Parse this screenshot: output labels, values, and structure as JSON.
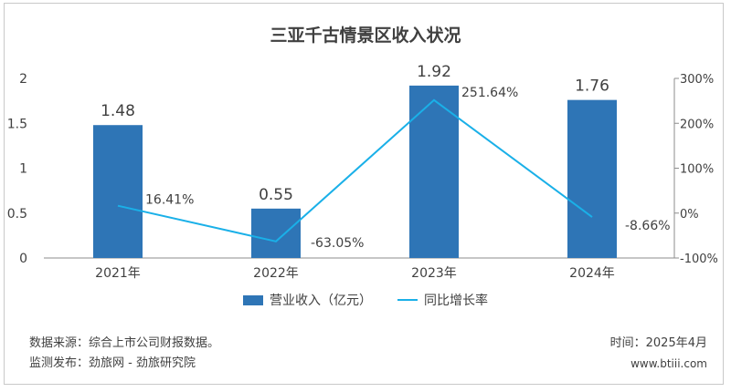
{
  "chart_data": {
    "type": "bar+line",
    "title": "三亚千古情景区收入状况",
    "categories": [
      "2021年",
      "2022年",
      "2023年",
      "2024年"
    ],
    "series": [
      {
        "name": "营业收入（亿元）",
        "kind": "bar",
        "axis": "left",
        "color": "#2e75b6",
        "values": [
          1.48,
          0.55,
          1.92,
          1.76
        ],
        "labels": [
          "1.48",
          "0.55",
          "1.92",
          "1.76"
        ]
      },
      {
        "name": "同比增长率",
        "kind": "line",
        "axis": "right",
        "color": "#1ab0e8",
        "values": [
          16.41,
          -63.05,
          251.64,
          -8.66
        ],
        "labels": [
          "16.41%",
          "-63.05%",
          "251.64%",
          "-8.66%"
        ]
      }
    ],
    "left_axis": {
      "min": 0,
      "max": 2,
      "ticks": [
        0,
        0.5,
        1,
        1.5,
        2
      ],
      "tick_labels": [
        "0",
        "0.5",
        "1",
        "1.5",
        "2"
      ]
    },
    "right_axis": {
      "min": -100,
      "max": 300,
      "ticks": [
        -100,
        0,
        100,
        200,
        300
      ],
      "tick_labels": [
        "-100%",
        "0%",
        "100%",
        "200%",
        "300%"
      ]
    },
    "grid": false,
    "legend_position": "bottom"
  },
  "footer": {
    "source": "数据来源：综合上市公司财报数据。",
    "publisher": "监测发布：劲旅网 - 劲旅研究院",
    "date": "时间：2025年4月",
    "website": "www.btiii.com"
  },
  "colors": {
    "axis": "#8c8c8c",
    "text": "#404040"
  }
}
